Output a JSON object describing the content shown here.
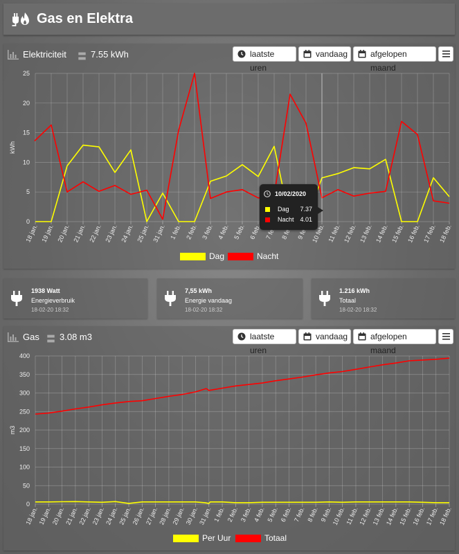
{
  "header": {
    "title": "Gas en Elektra"
  },
  "elec": {
    "title": "Elektriciteit",
    "value": "7.55 kWh",
    "buttons": {
      "hours": "laatste uren",
      "today": "vandaag",
      "month": "afgelopen maand"
    },
    "legend": {
      "dag": "Dag",
      "nacht": "Nacht"
    },
    "tooltip": {
      "date": "10/02/2020",
      "dag_label": "Dag",
      "dag_value": "7.37",
      "nacht_label": "Nacht",
      "nacht_value": "4.01"
    },
    "colors": {
      "dag": "#ffff00",
      "nacht": "#ff0000"
    }
  },
  "tiles": [
    {
      "value": "1938 Watt",
      "label": "Energieverbruik",
      "time": "18-02-20 18:32"
    },
    {
      "value": "7,55 kWh",
      "label": "Energie vandaag",
      "time": "18-02-20 18:32"
    },
    {
      "value": "1.216 kWh",
      "label": "Totaal",
      "time": "18-02-20 18:32"
    }
  ],
  "gas": {
    "title": "Gas",
    "value": "3.08 m3",
    "buttons": {
      "hours": "laatste uren",
      "today": "vandaag",
      "month": "afgelopen maand"
    },
    "legend": {
      "per_uur": "Per Uur",
      "totaal": "Totaal"
    },
    "colors": {
      "per_uur": "#ffff00",
      "totaal": "#ff0000"
    }
  },
  "chart_data": [
    {
      "type": "line",
      "ylabel": "kWh",
      "ylim": [
        0,
        25
      ],
      "yticks": [
        0,
        5,
        10,
        15,
        20,
        25
      ],
      "grid": true,
      "legend": "bottom",
      "categories": [
        "18 jan.",
        "19 jan.",
        "20 jan.",
        "21 jan.",
        "22 jan.",
        "23 jan.",
        "24 jan.",
        "25 jan.",
        "31 jan.",
        "1 feb.",
        "2 feb.",
        "3 feb.",
        "4 feb.",
        "5 feb.",
        "6 feb.",
        "7 feb.",
        "8 feb.",
        "9 feb.",
        "10 feb.",
        "11 feb.",
        "12 feb.",
        "13 feb.",
        "14 feb.",
        "15 feb.",
        "16 feb.",
        "17 feb.",
        "18 feb."
      ],
      "series": [
        {
          "name": "Dag",
          "color": "#ffff00",
          "values": [
            {
              "x": 0,
              "y": 0
            },
            {
              "x": 1,
              "y": 0
            },
            {
              "x": 2,
              "y": 9.4
            },
            {
              "x": 3,
              "y": 12.9
            },
            {
              "x": 4,
              "y": 12.6
            },
            {
              "x": 5,
              "y": 8.3
            },
            {
              "x": 6,
              "y": 12.1
            },
            {
              "x": 7,
              "y": 0
            },
            {
              "x": 8,
              "y": 4.8
            },
            {
              "x": 9,
              "y": 0
            },
            {
              "x": 10,
              "y": 0
            },
            {
              "x": 11,
              "y": 6.8
            },
            {
              "x": 12,
              "y": 7.7
            },
            {
              "x": 13,
              "y": 9.6
            },
            {
              "x": 14,
              "y": 7.6
            },
            {
              "x": 15,
              "y": 12.7
            },
            {
              "x": 16,
              "y": 0
            },
            {
              "x": 17,
              "y": 0
            },
            {
              "x": 18,
              "y": 7.37
            },
            {
              "x": 19,
              "y": 8.1
            },
            {
              "x": 20,
              "y": 9.1
            },
            {
              "x": 21,
              "y": 8.9
            },
            {
              "x": 22,
              "y": 10.5
            },
            {
              "x": 23,
              "y": 0
            },
            {
              "x": 24,
              "y": 0
            },
            {
              "x": 25,
              "y": 7.4
            },
            {
              "x": 26,
              "y": 4.2
            }
          ]
        },
        {
          "name": "Nacht",
          "color": "#ff0000",
          "values": [
            {
              "x": -0.05,
              "y": 13.6
            },
            {
              "x": 1,
              "y": 16.3
            },
            {
              "x": 2,
              "y": 5.0
            },
            {
              "x": 3,
              "y": 6.7
            },
            {
              "x": 4,
              "y": 5.1
            },
            {
              "x": 5,
              "y": 6.1
            },
            {
              "x": 6,
              "y": 4.6
            },
            {
              "x": 7,
              "y": 5.3
            },
            {
              "x": 8,
              "y": 0.4
            },
            {
              "x": 9,
              "y": 15.4
            },
            {
              "x": 10,
              "y": 25.0
            },
            {
              "x": 11,
              "y": 3.9
            },
            {
              "x": 12,
              "y": 5.0
            },
            {
              "x": 13,
              "y": 5.4
            },
            {
              "x": 14,
              "y": 4.0
            },
            {
              "x": 15,
              "y": 4.4
            },
            {
              "x": 16,
              "y": 21.5
            },
            {
              "x": 17,
              "y": 16.6
            },
            {
              "x": 18,
              "y": 4.01
            },
            {
              "x": 19,
              "y": 5.4
            },
            {
              "x": 20,
              "y": 4.3
            },
            {
              "x": 21,
              "y": 4.8
            },
            {
              "x": 22,
              "y": 5.1
            },
            {
              "x": 23,
              "y": 16.9
            },
            {
              "x": 24,
              "y": 14.7
            },
            {
              "x": 25,
              "y": 3.5
            },
            {
              "x": 26,
              "y": 3.1
            }
          ]
        }
      ]
    },
    {
      "type": "line",
      "ylabel": "m3",
      "ylim": [
        0,
        400
      ],
      "yticks": [
        0,
        50,
        100,
        150,
        200,
        250,
        300,
        350,
        400
      ],
      "grid": true,
      "legend": "bottom",
      "categories": [
        "18 jan.",
        "19 jan.",
        "20 jan.",
        "21 jan.",
        "22 jan.",
        "23 jan.",
        "24 jan.",
        "25 jan.",
        "26 jan.",
        "27 jan.",
        "28 jan.",
        "29 jan.",
        "30 jan.",
        "31 jan.",
        "1 feb.",
        "2 feb.",
        "3 feb.",
        "4 feb.",
        "5 feb.",
        "6 feb.",
        "7 feb.",
        "8 feb.",
        "9 feb.",
        "10 feb.",
        "11 feb.",
        "12 feb.",
        "13 feb.",
        "14 feb.",
        "15 feb.",
        "16 feb.",
        "17 feb.",
        "18 feb."
      ],
      "series": [
        {
          "name": "Per Uur",
          "color": "#ffff00",
          "values": [
            {
              "x": 0,
              "y": 6
            },
            {
              "x": 1,
              "y": 6
            },
            {
              "x": 2,
              "y": 6.5
            },
            {
              "x": 3,
              "y": 7
            },
            {
              "x": 4,
              "y": 6
            },
            {
              "x": 5,
              "y": 5
            },
            {
              "x": 6,
              "y": 7
            },
            {
              "x": 7,
              "y": 2
            },
            {
              "x": 8,
              "y": 6
            },
            {
              "x": 9,
              "y": 6
            },
            {
              "x": 10,
              "y": 6
            },
            {
              "x": 11,
              "y": 6
            },
            {
              "x": 12,
              "y": 6
            },
            {
              "x": 12.7,
              "y": 4
            },
            {
              "x": 13,
              "y": 2
            },
            {
              "x": 13.1,
              "y": 6
            },
            {
              "x": 14,
              "y": 6
            },
            {
              "x": 15,
              "y": 4
            },
            {
              "x": 16,
              "y": 4
            },
            {
              "x": 17,
              "y": 5
            },
            {
              "x": 18,
              "y": 5
            },
            {
              "x": 19,
              "y": 5
            },
            {
              "x": 20,
              "y": 5
            },
            {
              "x": 21,
              "y": 5
            },
            {
              "x": 22,
              "y": 6
            },
            {
              "x": 23,
              "y": 5
            },
            {
              "x": 24,
              "y": 6
            },
            {
              "x": 25,
              "y": 6
            },
            {
              "x": 26,
              "y": 6
            },
            {
              "x": 27,
              "y": 6
            },
            {
              "x": 28,
              "y": 6
            },
            {
              "x": 29,
              "y": 5
            },
            {
              "x": 30,
              "y": 4
            },
            {
              "x": 31,
              "y": 4
            }
          ]
        },
        {
          "name": "Totaal",
          "color": "#ff0000",
          "values": [
            {
              "x": 0,
              "y": 243
            },
            {
              "x": 1,
              "y": 246
            },
            {
              "x": 2,
              "y": 251
            },
            {
              "x": 3,
              "y": 257
            },
            {
              "x": 4,
              "y": 262
            },
            {
              "x": 5,
              "y": 268
            },
            {
              "x": 6,
              "y": 273
            },
            {
              "x": 7,
              "y": 277
            },
            {
              "x": 8,
              "y": 279
            },
            {
              "x": 9,
              "y": 285
            },
            {
              "x": 10,
              "y": 291
            },
            {
              "x": 11,
              "y": 296
            },
            {
              "x": 12,
              "y": 303
            },
            {
              "x": 12.8,
              "y": 312
            },
            {
              "x": 13,
              "y": 307
            },
            {
              "x": 14,
              "y": 313
            },
            {
              "x": 15,
              "y": 319
            },
            {
              "x": 16,
              "y": 323
            },
            {
              "x": 17,
              "y": 327
            },
            {
              "x": 18,
              "y": 333
            },
            {
              "x": 19,
              "y": 338
            },
            {
              "x": 20,
              "y": 343
            },
            {
              "x": 21,
              "y": 349
            },
            {
              "x": 22,
              "y": 354
            },
            {
              "x": 23,
              "y": 358
            },
            {
              "x": 24,
              "y": 364
            },
            {
              "x": 25,
              "y": 370
            },
            {
              "x": 26,
              "y": 376
            },
            {
              "x": 27,
              "y": 381
            },
            {
              "x": 28,
              "y": 387
            },
            {
              "x": 29,
              "y": 389
            },
            {
              "x": 30,
              "y": 391
            },
            {
              "x": 31,
              "y": 394
            }
          ]
        }
      ]
    }
  ]
}
